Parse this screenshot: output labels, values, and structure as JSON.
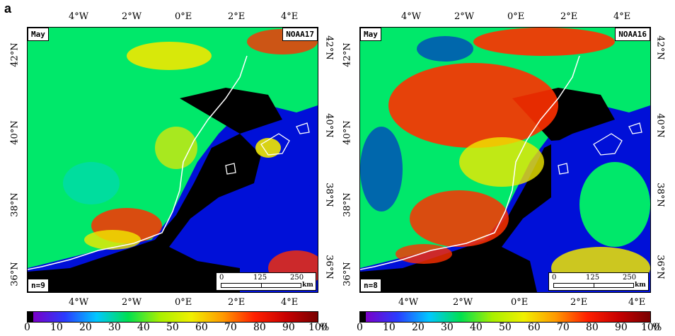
{
  "panel_letter": "a",
  "maps": [
    {
      "month": "May",
      "satellite": "NOAA17",
      "n_label": "n=9",
      "top_lon_ticks": [
        "4°W",
        "2°W",
        "0°E",
        "2°E",
        "4°E"
      ],
      "bottom_lon_ticks": [
        "4°W",
        "2°W",
        "0°E",
        "2°E",
        "4°E"
      ],
      "left_lat_ticks": [
        "42°N",
        "40°N",
        "38°N",
        "36°N"
      ],
      "right_lat_ticks": [
        "42°N",
        "40°N",
        "38°N",
        "36°N"
      ]
    },
    {
      "month": "May",
      "satellite": "NOAA16",
      "n_label": "n=8",
      "top_lon_ticks": [
        "4°W",
        "2°W",
        "0°E",
        "2°E",
        "4°E"
      ],
      "bottom_lon_ticks": [
        "4°W",
        "2°W",
        "0°E",
        "2°E",
        "4°E"
      ],
      "left_lat_ticks": [
        "42°N",
        "40°N",
        "38°N",
        "36°N"
      ],
      "right_lat_ticks": [
        "42°N",
        "40°N",
        "38°N",
        "36°N"
      ]
    }
  ],
  "scale_bar": {
    "labels": [
      "0",
      "125",
      "250"
    ],
    "unit": "km"
  },
  "colorbar": {
    "labels": [
      "0",
      "10",
      "20",
      "30",
      "40",
      "50",
      "60",
      "70",
      "80",
      "90",
      "100"
    ],
    "unit": "%",
    "colors": [
      "#000000",
      "#7a00c8",
      "#2a3cff",
      "#00c8ff",
      "#00e050",
      "#a8f000",
      "#f0f000",
      "#ff9a00",
      "#ff2000",
      "#c80000",
      "#780000"
    ]
  },
  "colors": {
    "sea_dark": "#000000",
    "sea_blue": "#0010d8",
    "low": "#00e86a",
    "mid": "#f0e800",
    "high": "#ff3000",
    "coast": "#ffffff"
  }
}
